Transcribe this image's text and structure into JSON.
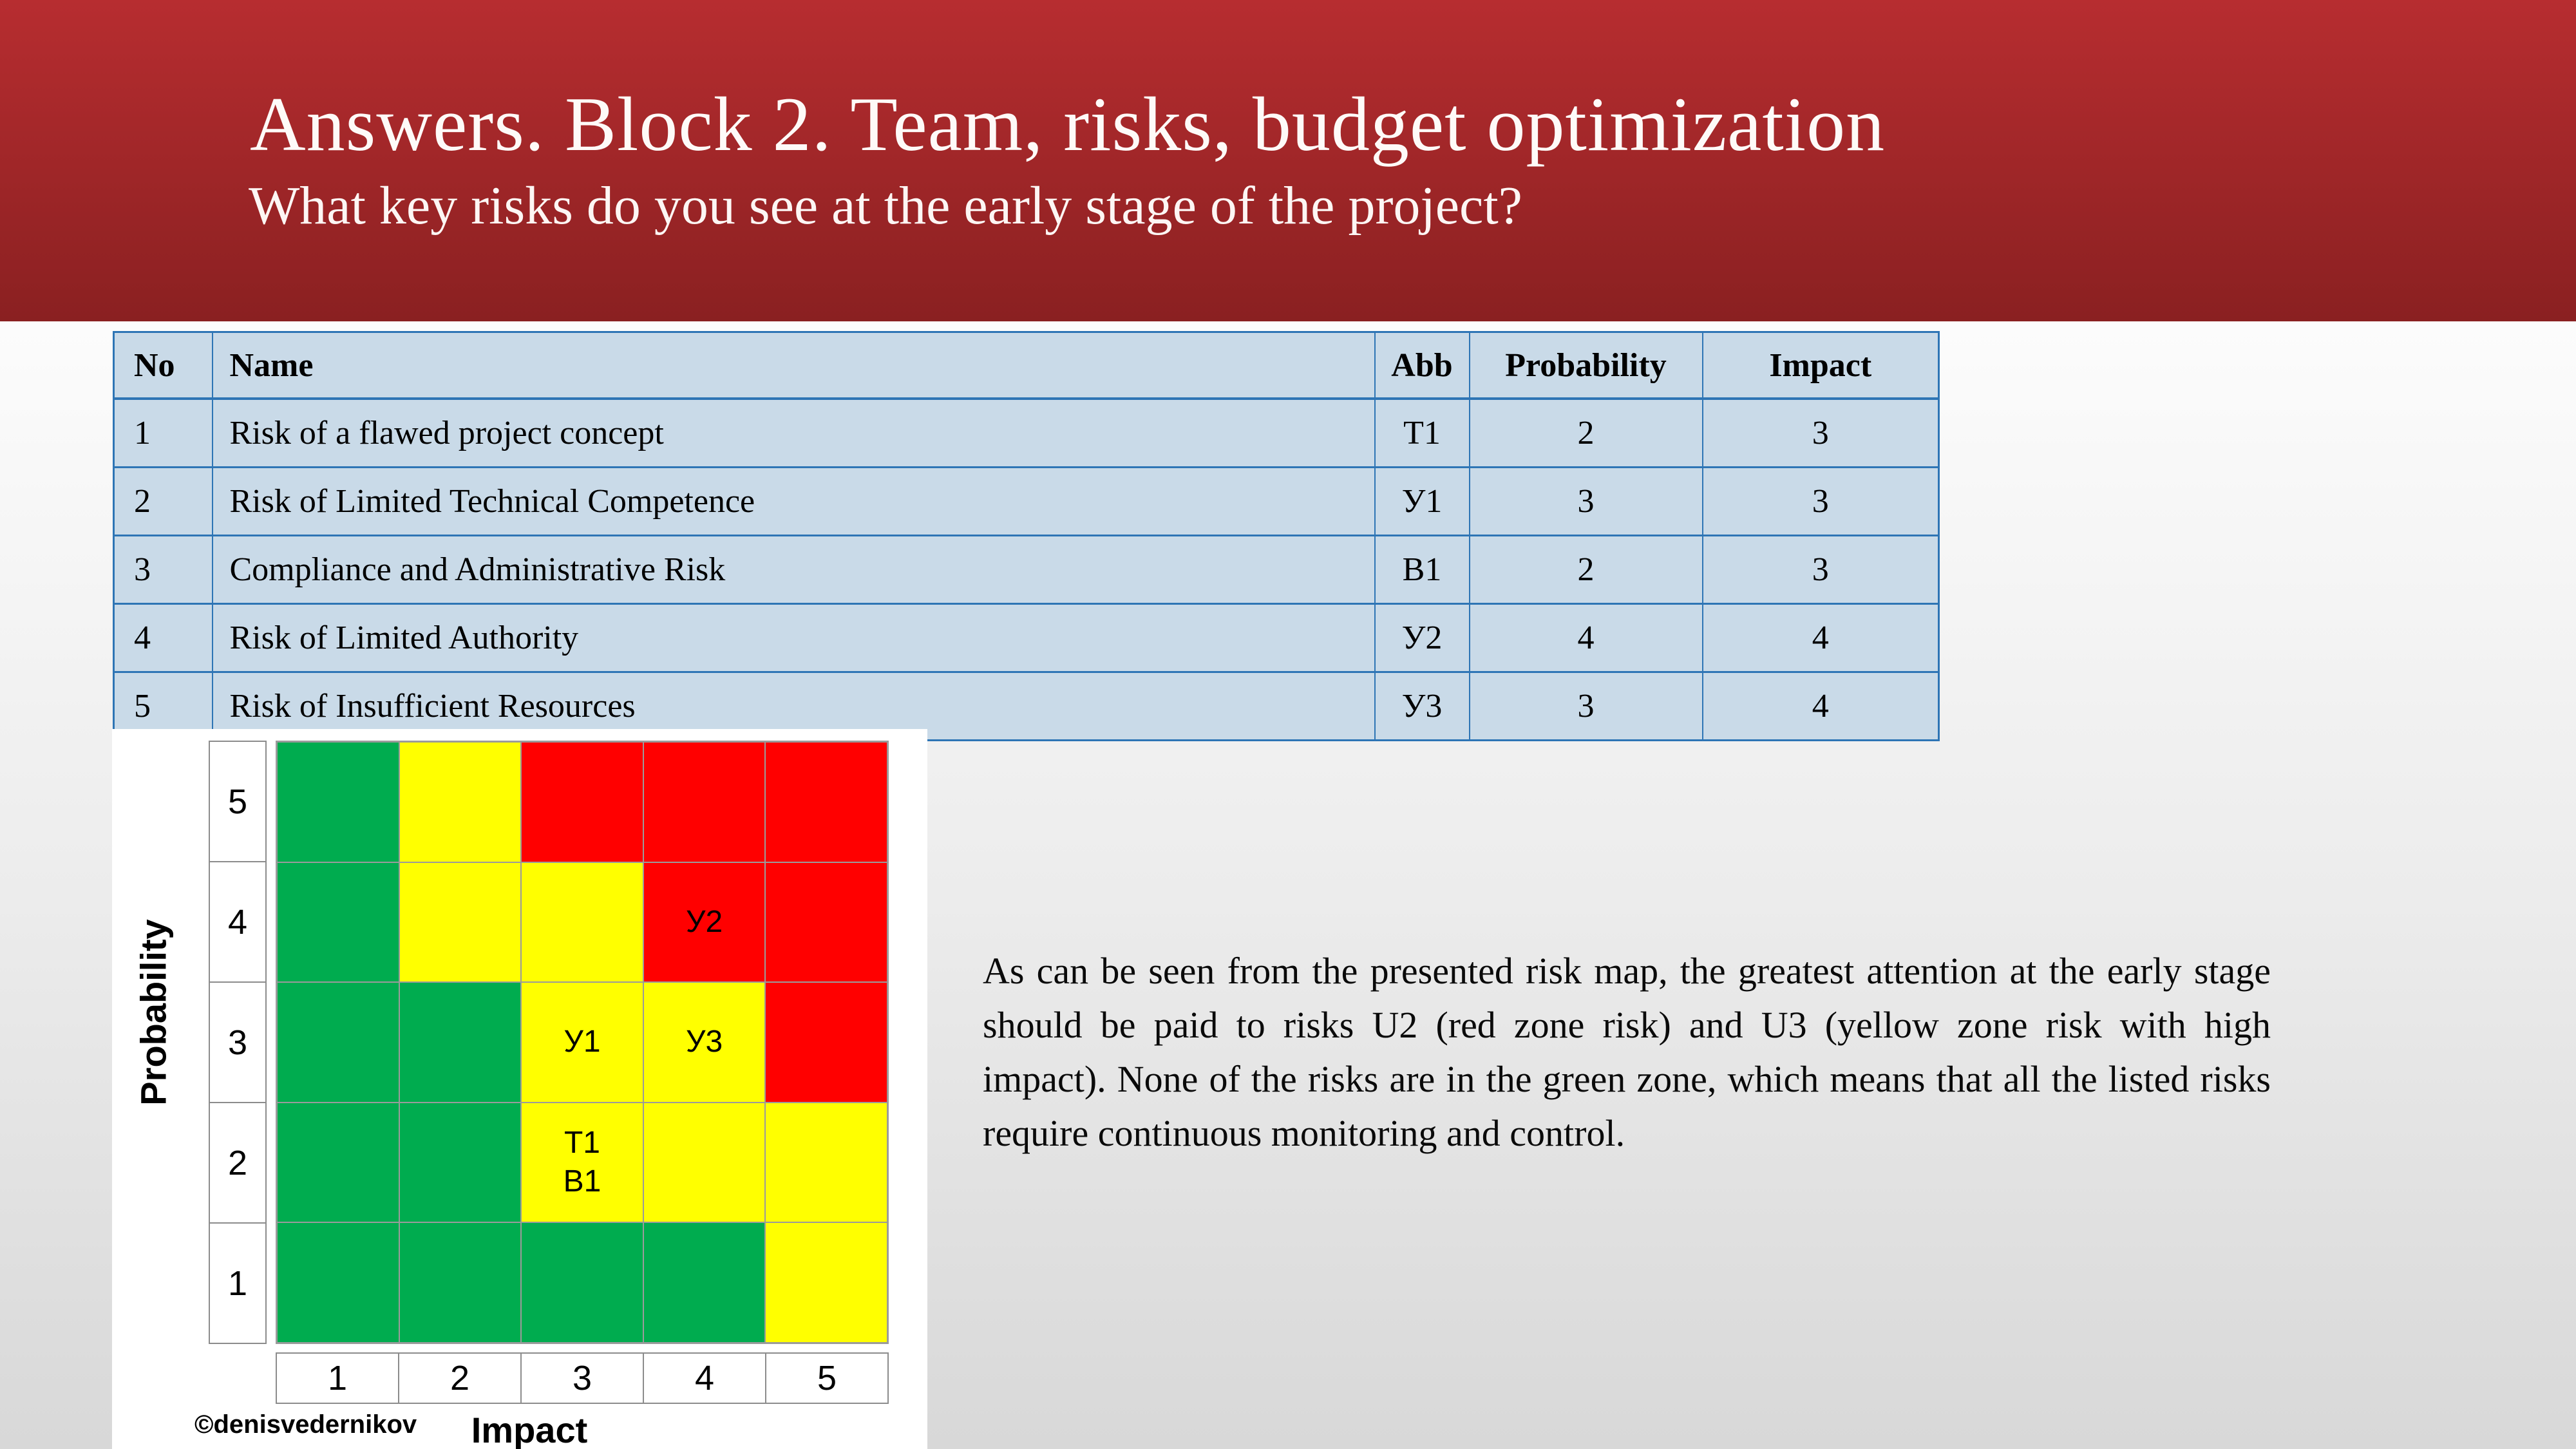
{
  "slide": {
    "title": "Answers. Block 2. Team, risks, budget optimization",
    "subtitle": "What key risks do you see at the early stage of the project?"
  },
  "theme": {
    "header_gradient_top": "#B72D30",
    "header_gradient_bottom": "#8A2021",
    "body_gradient_top": "#FCFCFC",
    "body_gradient_bottom": "#D8D8D8",
    "table_bg": "#C9DAE8",
    "table_border": "#2E75B5",
    "zone_green": "#00AC4F",
    "zone_yellow": "#FFFF00",
    "zone_red": "#FF0000"
  },
  "risk_table": {
    "headers": {
      "no": "No",
      "name": "Name",
      "abb": "Abb",
      "probability": "Probability",
      "impact": "Impact"
    },
    "rows": [
      {
        "no": "1",
        "name": "Risk of a flawed project concept",
        "abb": "T1",
        "probability": "2",
        "impact": "3"
      },
      {
        "no": "2",
        "name": "Risk of Limited Technical Competence",
        "abb": "У1",
        "probability": "3",
        "impact": "3"
      },
      {
        "no": "3",
        "name": "Compliance and Administrative Risk",
        "abb": "В1",
        "probability": "2",
        "impact": "3"
      },
      {
        "no": "4",
        "name": "Risk of Limited Authority",
        "abb": "У2",
        "probability": "4",
        "impact": "4"
      },
      {
        "no": "5",
        "name": "Risk of Insufficient Resources",
        "abb": "У3",
        "probability": "3",
        "impact": "4"
      }
    ]
  },
  "risk_matrix": {
    "type": "heatmap",
    "x_axis_label": "Impact",
    "y_axis_label": "Probability",
    "x_ticks": [
      "1",
      "2",
      "3",
      "4",
      "5"
    ],
    "y_ticks": [
      "5",
      "4",
      "3",
      "2",
      "1"
    ],
    "rows": [
      {
        "probability": "5",
        "cells": [
          {
            "zone": "green"
          },
          {
            "zone": "yellow"
          },
          {
            "zone": "red"
          },
          {
            "zone": "red"
          },
          {
            "zone": "red"
          }
        ]
      },
      {
        "probability": "4",
        "cells": [
          {
            "zone": "green"
          },
          {
            "zone": "yellow"
          },
          {
            "zone": "yellow"
          },
          {
            "zone": "red",
            "labels": [
              "У2"
            ]
          },
          {
            "zone": "red"
          }
        ]
      },
      {
        "probability": "3",
        "cells": [
          {
            "zone": "green"
          },
          {
            "zone": "green"
          },
          {
            "zone": "yellow",
            "labels": [
              "У1"
            ]
          },
          {
            "zone": "yellow",
            "labels": [
              "У3"
            ]
          },
          {
            "zone": "red"
          }
        ]
      },
      {
        "probability": "2",
        "cells": [
          {
            "zone": "green"
          },
          {
            "zone": "green"
          },
          {
            "zone": "yellow",
            "labels": [
              "T1",
              "В1"
            ]
          },
          {
            "zone": "yellow"
          },
          {
            "zone": "yellow"
          }
        ]
      },
      {
        "probability": "1",
        "cells": [
          {
            "zone": "green"
          },
          {
            "zone": "green"
          },
          {
            "zone": "green"
          },
          {
            "zone": "green"
          },
          {
            "zone": "yellow"
          }
        ]
      }
    ],
    "watermark": "©denisvedernikov"
  },
  "commentary": {
    "text": "As can be seen from the presented risk map, the greatest attention at the early stage should be paid to risks U2 (red zone risk) and U3 (yellow zone risk with high impact). None of the risks are in the green zone, which means that all the listed risks require continuous monitoring and control."
  }
}
